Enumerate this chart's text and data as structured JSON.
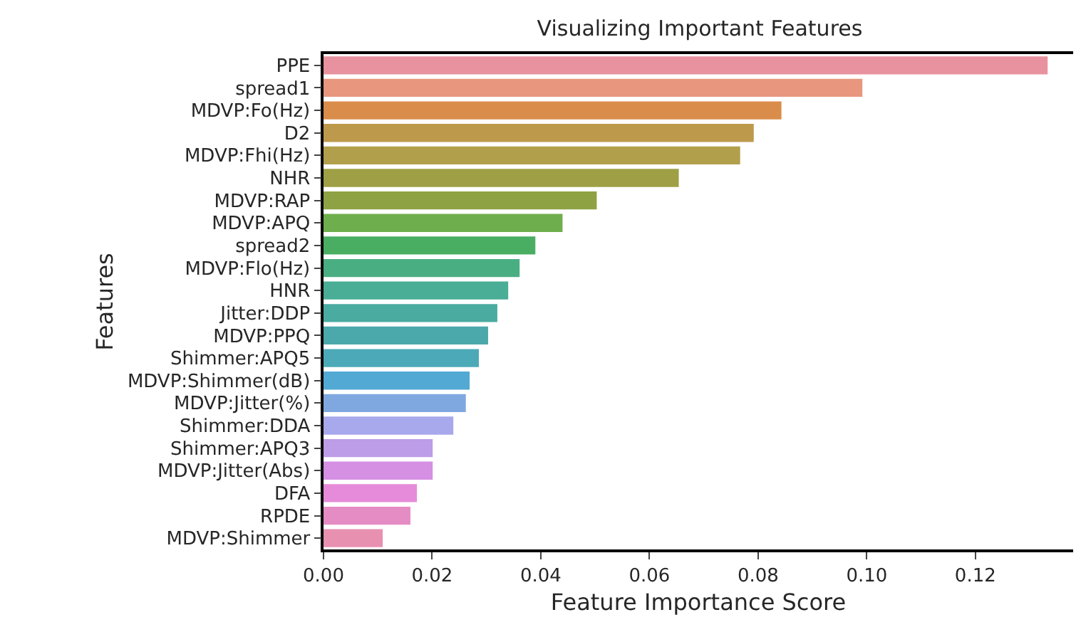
{
  "chart_data": {
    "type": "bar",
    "orientation": "horizontal",
    "title": "Visualizing Important Features",
    "xlabel": "Feature Importance Score",
    "ylabel": "Features",
    "categories": [
      "PPE",
      "spread1",
      "MDVP:Fo(Hz)",
      "D2",
      "MDVP:Fhi(Hz)",
      "NHR",
      "MDVP:RAP",
      "MDVP:APQ",
      "spread2",
      "MDVP:Flo(Hz)",
      "HNR",
      "Jitter:DDP",
      "MDVP:PPQ",
      "Shimmer:APQ5",
      "MDVP:Shimmer(dB)",
      "MDVP:Jitter(%)",
      "Shimmer:DDA",
      "Shimmer:APQ3",
      "MDVP:Jitter(Abs)",
      "DFA",
      "RPDE",
      "MDVP:Shimmer"
    ],
    "values": [
      0.1333,
      0.0992,
      0.0843,
      0.0792,
      0.0767,
      0.0654,
      0.0503,
      0.044,
      0.039,
      0.0361,
      0.034,
      0.032,
      0.0303,
      0.0286,
      0.0269,
      0.0262,
      0.0239,
      0.0201,
      0.0201,
      0.0172,
      0.016,
      0.0109
    ],
    "colors": [
      "#e8929f",
      "#e9967f",
      "#da8d4a",
      "#bd994b",
      "#b29f4b",
      "#9f9f45",
      "#8ea243",
      "#6fae4d",
      "#4aae62",
      "#4aae83",
      "#4aad95",
      "#4aaba0",
      "#4ba8ab",
      "#4caab8",
      "#52a9d3",
      "#7fa8e0",
      "#a8a8ec",
      "#bd9ce8",
      "#d58fe3",
      "#e68bd9",
      "#e68cc4",
      "#e890b0"
    ],
    "xlim": [
      0,
      0.138
    ],
    "xticks": [
      {
        "value": 0,
        "label": "0.00"
      },
      {
        "value": 0.02,
        "label": "0.02"
      },
      {
        "value": 0.04,
        "label": "0.04"
      },
      {
        "value": 0.06,
        "label": "0.06"
      },
      {
        "value": 0.08,
        "label": "0.08"
      },
      {
        "value": 0.1,
        "label": "0.10"
      },
      {
        "value": 0.12,
        "label": "0.12"
      }
    ]
  }
}
